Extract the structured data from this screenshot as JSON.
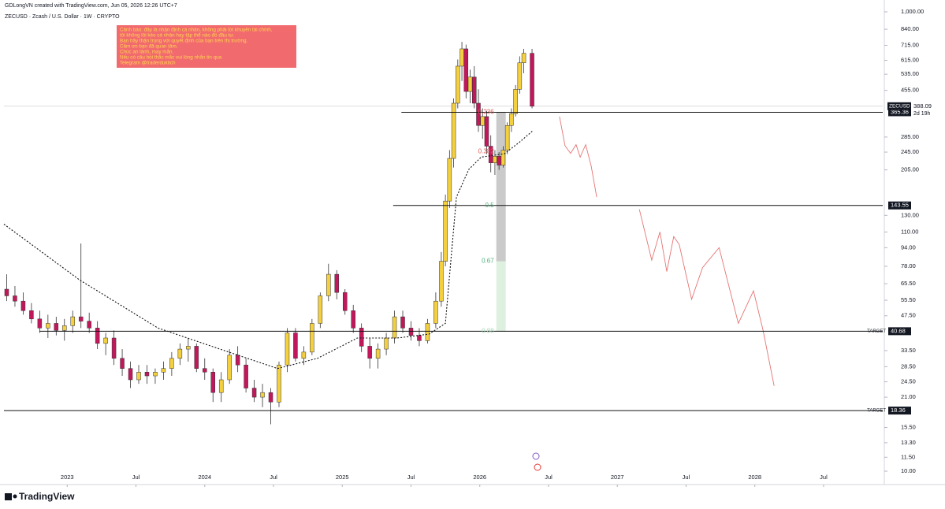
{
  "header": {
    "credit": "GDLongVN created with TradingView.com, Jun 05, 2026 12:26 UTC+7"
  },
  "footer": {
    "brand": "TradingView"
  },
  "chart_data": {
    "type": "candlestick",
    "title": "ZECUSD · Zcash / U.S. Dollar · 1W · CRYPTO",
    "log_scale": true,
    "grid": false,
    "up_color": "#f4d03f",
    "down_color": "#c2185b",
    "xlim": [
      2022.54,
      2028.93
    ],
    "ylim": [
      10,
      1000
    ],
    "xticks": [
      {
        "value": 2023,
        "label": "2023"
      },
      {
        "value": 2023.5,
        "label": "Jul"
      },
      {
        "value": 2024,
        "label": "2024"
      },
      {
        "value": 2024.5,
        "label": "Jul"
      },
      {
        "value": 2025,
        "label": "2025"
      },
      {
        "value": 2025.5,
        "label": "Jul"
      },
      {
        "value": 2026,
        "label": "2026"
      },
      {
        "value": 2026.5,
        "label": "Jul"
      },
      {
        "value": 2027,
        "label": "2027"
      },
      {
        "value": 2027.5,
        "label": "Jul"
      },
      {
        "value": 2028,
        "label": "2028"
      },
      {
        "value": 2028.5,
        "label": "Jul"
      }
    ],
    "yticks": [
      {
        "value": 1000,
        "label": "1,000.00"
      },
      {
        "value": 840,
        "label": "840.00"
      },
      {
        "value": 715,
        "label": "715.00"
      },
      {
        "value": 615,
        "label": "615.00"
      },
      {
        "value": 535,
        "label": "535.00"
      },
      {
        "value": 455,
        "label": "455.00"
      },
      {
        "value": 285,
        "label": "285.00"
      },
      {
        "value": 245,
        "label": "245.00"
      },
      {
        "value": 205,
        "label": "205.00"
      },
      {
        "value": 130,
        "label": "130.00"
      },
      {
        "value": 110,
        "label": "110.00"
      },
      {
        "value": 94,
        "label": "94.00"
      },
      {
        "value": 78,
        "label": "78.00"
      },
      {
        "value": 65.5,
        "label": "65.50"
      },
      {
        "value": 55.5,
        "label": "55.50"
      },
      {
        "value": 47.5,
        "label": "47.50"
      },
      {
        "value": 33.5,
        "label": "33.50"
      },
      {
        "value": 28.5,
        "label": "28.50"
      },
      {
        "value": 24.5,
        "label": "24.50"
      },
      {
        "value": 21,
        "label": "21.00"
      },
      {
        "value": 15.5,
        "label": "15.50"
      },
      {
        "value": 13.3,
        "label": "13.30"
      },
      {
        "value": 11.5,
        "label": "11.50"
      },
      {
        "value": 10,
        "label": "10.00"
      }
    ],
    "x": [
      2022.56,
      2022.62,
      2022.68,
      2022.74,
      2022.8,
      2022.86,
      2022.92,
      2022.98,
      2023.04,
      2023.1,
      2023.16,
      2023.22,
      2023.28,
      2023.34,
      2023.4,
      2023.46,
      2023.52,
      2023.58,
      2023.64,
      2023.7,
      2023.76,
      2023.82,
      2023.88,
      2023.94,
      2024,
      2024.06,
      2024.12,
      2024.18,
      2024.24,
      2024.3,
      2024.36,
      2024.42,
      2024.48,
      2024.54,
      2024.6,
      2024.66,
      2024.72,
      2024.78,
      2024.84,
      2024.9,
      2024.96,
      2025.02,
      2025.08,
      2025.14,
      2025.2,
      2025.26,
      2025.32,
      2025.38,
      2025.44,
      2025.5,
      2025.56,
      2025.62,
      2025.68,
      2025.72,
      2025.75,
      2025.78,
      2025.81,
      2025.84,
      2025.87,
      2025.9,
      2025.93,
      2025.96,
      2025.99,
      2026.02,
      2026.05,
      2026.08,
      2026.11,
      2026.14,
      2026.17,
      2026.2,
      2026.23,
      2026.26,
      2026.29,
      2026.32,
      2026.38
    ],
    "open": [
      62,
      58,
      55,
      50,
      46,
      42,
      44,
      41,
      43,
      47,
      45,
      42,
      36,
      38,
      31,
      28,
      25,
      27,
      26,
      27,
      28,
      31,
      34,
      35,
      28,
      27,
      22,
      25,
      32,
      29,
      23,
      21,
      22,
      20,
      29,
      40,
      31,
      33,
      44,
      58,
      72,
      60,
      50,
      42,
      35,
      31,
      34,
      38,
      47,
      42,
      39,
      37,
      44,
      55,
      82,
      150,
      230,
      400,
      580,
      690,
      450,
      520,
      400,
      320,
      350,
      260,
      220,
      235,
      215,
      250,
      320,
      360,
      460,
      600,
      660
    ],
    "high": [
      72,
      64,
      60,
      54,
      50,
      48,
      47,
      46,
      50,
      98,
      49,
      45,
      40,
      41,
      34,
      30,
      29,
      29,
      28,
      30,
      33,
      36,
      38,
      36,
      31,
      28,
      27,
      34,
      35,
      31,
      25,
      24,
      23,
      30,
      42,
      42,
      35,
      46,
      60,
      80,
      75,
      62,
      53,
      44,
      38,
      36,
      40,
      50,
      50,
      45,
      42,
      46,
      60,
      90,
      160,
      250,
      420,
      620,
      740,
      720,
      560,
      580,
      460,
      380,
      370,
      290,
      250,
      245,
      260,
      330,
      380,
      480,
      640,
      690,
      690
    ],
    "low": [
      55,
      52,
      48,
      44,
      40,
      38,
      39,
      37,
      40,
      42,
      40,
      34,
      32,
      29,
      26,
      23,
      24,
      24,
      24,
      25,
      26,
      29,
      30,
      27,
      25,
      20,
      20,
      24,
      27,
      22,
      20,
      19,
      16,
      19,
      27,
      30,
      29,
      32,
      42,
      55,
      56,
      48,
      40,
      33,
      28,
      28,
      32,
      36,
      40,
      37,
      35,
      36,
      42,
      52,
      78,
      140,
      210,
      380,
      500,
      420,
      400,
      380,
      300,
      280,
      240,
      200,
      195,
      205,
      210,
      240,
      300,
      350,
      440,
      540,
      380
    ],
    "close": [
      58,
      55,
      50,
      46,
      42,
      44,
      41,
      43,
      47,
      45,
      42,
      36,
      38,
      31,
      28,
      25,
      27,
      26,
      27,
      28,
      31,
      34,
      35,
      28,
      27,
      22,
      25,
      32,
      29,
      23,
      21,
      22,
      20,
      29,
      40,
      31,
      33,
      44,
      58,
      72,
      60,
      50,
      42,
      35,
      31,
      34,
      38,
      47,
      42,
      39,
      37,
      44,
      55,
      82,
      150,
      230,
      400,
      580,
      690,
      450,
      520,
      400,
      320,
      350,
      260,
      220,
      235,
      215,
      250,
      320,
      360,
      460,
      600,
      660,
      388.09
    ],
    "series": [
      {
        "color": "#111111",
        "style": "dotted",
        "x": [
          2022.54,
          2023.09,
          2023.66,
          2024.24,
          2024.53,
          2024.82,
          2025.11,
          2025.4,
          2025.63,
          2025.75,
          2025.79,
          2025.83,
          2025.92,
          2026.01,
          2026.18,
          2026.29,
          2026.39
        ],
        "values": [
          119,
          68,
          42,
          32,
          28,
          31,
          38,
          38,
          39.5,
          44,
          83,
          156,
          206,
          233,
          241,
          271,
          305
        ]
      },
      {
        "color": "#e57373",
        "style": "solid",
        "x": [
          2026.58,
          2026.62,
          2026.66,
          2026.7,
          2026.73,
          2026.77,
          2026.81,
          2026.85,
          2027.0,
          2027.16,
          2027.25,
          2027.31,
          2027.36,
          2027.41,
          2027.45,
          2027.54,
          2027.62,
          2027.74,
          2027.88,
          2027.99,
          2028.06,
          2028.14
        ],
        "values": [
          350,
          261,
          242,
          264,
          233,
          264,
          213,
          156,
          null,
          138,
          83,
          110,
          74,
          105,
          97,
          56,
          77,
          94,
          44,
          61,
          41,
          23.5
        ]
      }
    ],
    "symbol": "ZECUSD",
    "last_price": 388.09,
    "countdown": "2d 19h",
    "levels": [
      {
        "price": 365.36,
        "x_from": 2025.43
      },
      {
        "price": 143.55,
        "x_from": 2025.37
      },
      {
        "price": 40.68,
        "x_from": 2022.8,
        "tag": "TARGET"
      },
      {
        "price": 18.36,
        "x_from": 2022.54,
        "tag": "TARGET"
      }
    ],
    "fib_labels": [
      {
        "text": "0.236",
        "price": 365.36,
        "color": "#e05a5a"
      },
      {
        "text": "0.382",
        "price": 246,
        "color": "#e05a5a"
      },
      {
        "text": "0.5",
        "price": 143.55,
        "color": "#4caf7a"
      },
      {
        "text": "0.67",
        "price": 82,
        "color": "#4caf7a"
      },
      {
        "text": "0.88",
        "price": 40.68,
        "color": "#a5d6b5"
      }
    ],
    "note": {
      "lines": [
        "Cảnh báo: đây là nhận định cá nhân, không phải lời khuyên tài chính,",
        "tôi không lôi kéo cá nhân hay tập thể nào đó đầu tư.",
        "Bạn hãy thận trọng với quyết định của bạn trên thị trường.",
        "Cảm ơn bạn đã quan tâm.",
        "Chúc an lành, may mắn.",
        "Nếu có câu hỏi thắc mắc vui lòng nhắn tin qua",
        "Telegram @traderduktich"
      ]
    }
  }
}
